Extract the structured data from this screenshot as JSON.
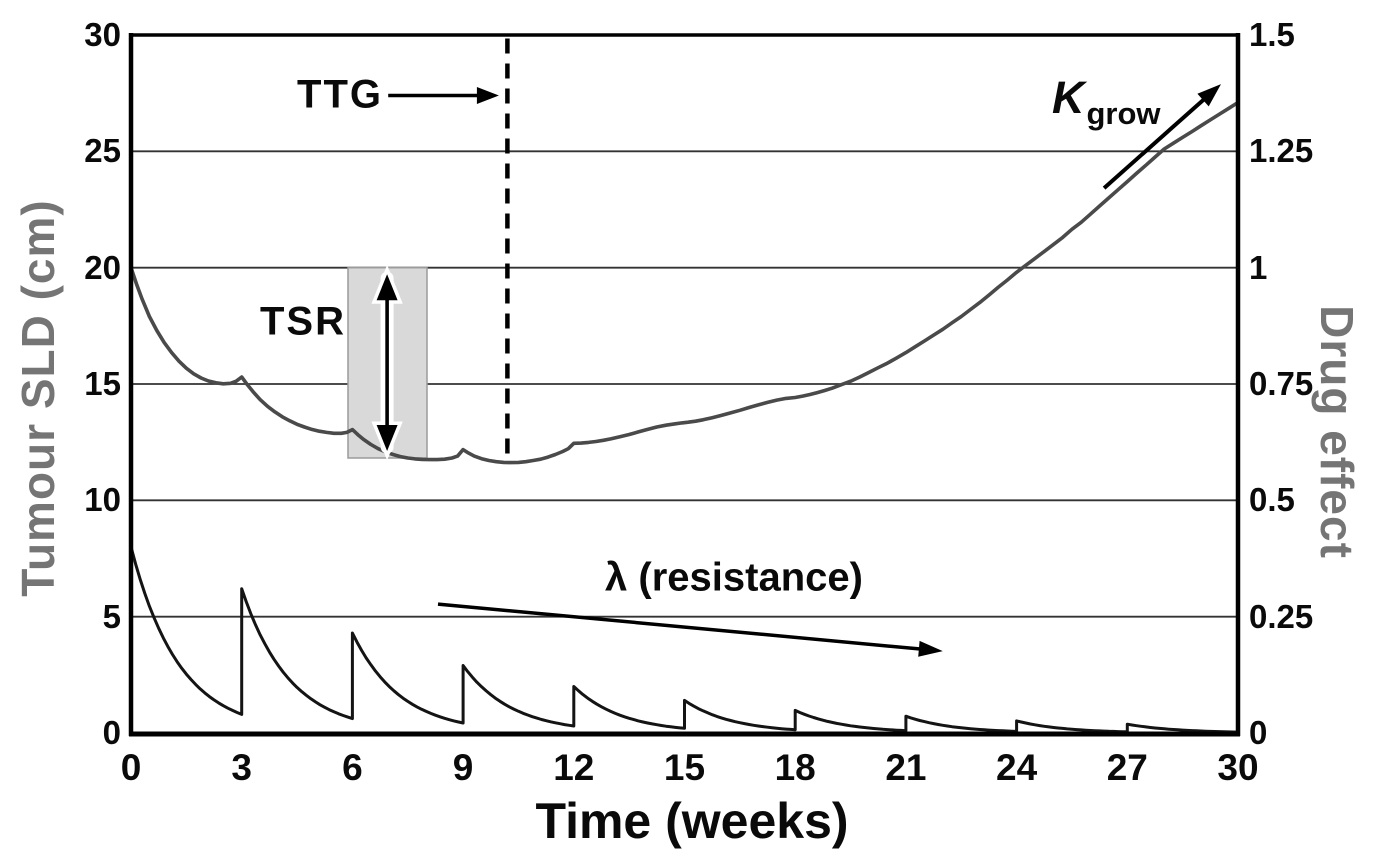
{
  "figure": {
    "background": "#ffffff"
  },
  "chart_data": {
    "type": "line",
    "title": "",
    "description": "Tumour size (SLD) and drug effect over time under repeated 3-weekly dosing, with growing resistance",
    "x_axis": {
      "title": "Time (weeks)",
      "range": [
        0,
        30
      ],
      "ticks": [
        0,
        3,
        6,
        9,
        12,
        15,
        18,
        21,
        24,
        27,
        30
      ],
      "tick_labels": [
        "0",
        "3",
        "6",
        "9",
        "12",
        "15",
        "18",
        "21",
        "24",
        "27",
        "30"
      ]
    },
    "y_axis_left": {
      "title": "Tumour SLD (cm)",
      "range": [
        0,
        30
      ],
      "ticks": [
        0,
        5,
        10,
        15,
        20,
        25,
        30
      ],
      "tick_labels": [
        "0",
        "5",
        "10",
        "15",
        "20",
        "25",
        "30"
      ],
      "title_color": "#757575"
    },
    "y_axis_right": {
      "title": "Drug effect",
      "range": [
        0,
        1.5
      ],
      "ticks": [
        0,
        0.25,
        0.5,
        0.75,
        1,
        1.25,
        1.5
      ],
      "tick_labels": [
        "0",
        "0.25",
        "0.5",
        "0.75",
        "1",
        "1.25",
        "1.5"
      ],
      "title_color": "#757575"
    },
    "grid": {
      "horizontal_at_left_values": [
        5,
        10,
        15,
        20,
        25
      ],
      "vertical": false,
      "color": "#333333"
    },
    "legend": null,
    "series": [
      {
        "name": "tumour-sld",
        "axis": "left",
        "color": "#4a4a4a",
        "width": 3.6,
        "points": [
          [
            0,
            20
          ],
          [
            0.15,
            19.3
          ],
          [
            0.3,
            18.65
          ],
          [
            0.5,
            17.9
          ],
          [
            0.7,
            17.3
          ],
          [
            0.9,
            16.78
          ],
          [
            1.1,
            16.35
          ],
          [
            1.3,
            15.98
          ],
          [
            1.5,
            15.68
          ],
          [
            1.7,
            15.44
          ],
          [
            1.9,
            15.26
          ],
          [
            2.1,
            15.13
          ],
          [
            2.3,
            15.05
          ],
          [
            2.5,
            15.01
          ],
          [
            2.7,
            15.03
          ],
          [
            2.85,
            15.12
          ],
          [
            3,
            15.3
          ],
          [
            3.15,
            14.98
          ],
          [
            3.3,
            14.68
          ],
          [
            3.5,
            14.33
          ],
          [
            3.7,
            14.04
          ],
          [
            3.9,
            13.8
          ],
          [
            4.1,
            13.59
          ],
          [
            4.3,
            13.42
          ],
          [
            4.5,
            13.27
          ],
          [
            4.7,
            13.15
          ],
          [
            4.9,
            13.05
          ],
          [
            5.1,
            12.97
          ],
          [
            5.3,
            12.92
          ],
          [
            5.5,
            12.88
          ],
          [
            5.7,
            12.88
          ],
          [
            5.85,
            12.92
          ],
          [
            6,
            13.04
          ],
          [
            6.15,
            12.82
          ],
          [
            6.3,
            12.62
          ],
          [
            6.5,
            12.4
          ],
          [
            6.7,
            12.22
          ],
          [
            6.9,
            12.08
          ],
          [
            7.1,
            11.97
          ],
          [
            7.3,
            11.88
          ],
          [
            7.5,
            11.82
          ],
          [
            7.7,
            11.78
          ],
          [
            7.9,
            11.76
          ],
          [
            8.1,
            11.75
          ],
          [
            8.3,
            11.75
          ],
          [
            8.5,
            11.77
          ],
          [
            8.7,
            11.82
          ],
          [
            8.85,
            11.9
          ],
          [
            9,
            12.18
          ],
          [
            9.15,
            12.03
          ],
          [
            9.3,
            11.9
          ],
          [
            9.5,
            11.79
          ],
          [
            9.7,
            11.71
          ],
          [
            9.9,
            11.66
          ],
          [
            10.1,
            11.63
          ],
          [
            10.3,
            11.62
          ],
          [
            10.5,
            11.63
          ],
          [
            10.7,
            11.66
          ],
          [
            10.9,
            11.71
          ],
          [
            11.1,
            11.77
          ],
          [
            11.3,
            11.86
          ],
          [
            11.5,
            11.97
          ],
          [
            11.7,
            12.1
          ],
          [
            11.85,
            12.22
          ],
          [
            12,
            12.45
          ],
          [
            12.2,
            12.46
          ],
          [
            12.4,
            12.49
          ],
          [
            12.6,
            12.53
          ],
          [
            12.8,
            12.58
          ],
          [
            13,
            12.64
          ],
          [
            13.25,
            12.73
          ],
          [
            13.5,
            12.83
          ],
          [
            13.75,
            12.94
          ],
          [
            14,
            13.05
          ],
          [
            14.25,
            13.15
          ],
          [
            14.5,
            13.23
          ],
          [
            14.75,
            13.29
          ],
          [
            14.93,
            13.33
          ],
          [
            15.1,
            13.36
          ],
          [
            15.3,
            13.4
          ],
          [
            15.5,
            13.46
          ],
          [
            15.75,
            13.55
          ],
          [
            16,
            13.65
          ],
          [
            16.25,
            13.76
          ],
          [
            16.5,
            13.87
          ],
          [
            16.75,
            13.99
          ],
          [
            17,
            14.1
          ],
          [
            17.25,
            14.21
          ],
          [
            17.5,
            14.31
          ],
          [
            17.75,
            14.38
          ],
          [
            18,
            14.42
          ],
          [
            18.2,
            14.48
          ],
          [
            18.4,
            14.55
          ],
          [
            18.6,
            14.63
          ],
          [
            18.8,
            14.72
          ],
          [
            19,
            14.82
          ],
          [
            19.25,
            14.97
          ],
          [
            19.5,
            15.12
          ],
          [
            19.75,
            15.3
          ],
          [
            20,
            15.5
          ],
          [
            20.25,
            15.7
          ],
          [
            20.5,
            15.9
          ],
          [
            20.75,
            16.12
          ],
          [
            21,
            16.35
          ],
          [
            21.25,
            16.6
          ],
          [
            21.5,
            16.85
          ],
          [
            21.75,
            17.1
          ],
          [
            22,
            17.35
          ],
          [
            22.25,
            17.63
          ],
          [
            22.5,
            17.9
          ],
          [
            22.75,
            18.2
          ],
          [
            23,
            18.5
          ],
          [
            23.25,
            18.82
          ],
          [
            23.5,
            19.15
          ],
          [
            23.75,
            19.47
          ],
          [
            24,
            19.8
          ],
          [
            24.25,
            20.1
          ],
          [
            24.5,
            20.4
          ],
          [
            24.75,
            20.7
          ],
          [
            25,
            21.0
          ],
          [
            25.25,
            21.3
          ],
          [
            25.5,
            21.65
          ],
          [
            25.75,
            21.95
          ],
          [
            26,
            22.3
          ],
          [
            26.25,
            22.65
          ],
          [
            26.5,
            23.0
          ],
          [
            26.75,
            23.35
          ],
          [
            27,
            23.7
          ],
          [
            27.25,
            24.05
          ],
          [
            27.5,
            24.4
          ],
          [
            27.75,
            24.75
          ],
          [
            28,
            25.1
          ],
          [
            28.25,
            25.35
          ],
          [
            28.5,
            25.6
          ],
          [
            28.75,
            25.85
          ],
          [
            29,
            26.1
          ],
          [
            29.25,
            26.35
          ],
          [
            29.5,
            26.6
          ],
          [
            29.75,
            26.85
          ],
          [
            30,
            27.1
          ]
        ]
      },
      {
        "name": "drug-effect",
        "axis": "right",
        "color": "#141414",
        "width": 3,
        "dosing_interval_weeks": 3,
        "dose_times": [
          0,
          3,
          6,
          9,
          12,
          15,
          18,
          21,
          24,
          27
        ],
        "peak_values": [
          0.4,
          0.31,
          0.215,
          0.145,
          0.1,
          0.07,
          0.0485,
          0.036,
          0.026,
          0.019
        ],
        "trough_values": [
          0.04,
          0.031,
          0.0215,
          0.015,
          0.01,
          0.007,
          0.005,
          0.0035,
          0.0025,
          0.002
        ]
      }
    ],
    "annotations": {
      "ttg": {
        "text": "TTG",
        "type": "dashed-vline-with-arrow",
        "x_weeks": 10.2,
        "line_top_sld": 29.85,
        "line_bottom_sld": 11.9,
        "arrow_from": [
          6.97,
          27.4
        ],
        "arrow_to": [
          9.97,
          27.4
        ]
      },
      "tsr": {
        "text": "TSR",
        "type": "shaded-box-with-double-arrow",
        "x_weeks": [
          5.88,
          8.02
        ],
        "y_sld": [
          11.82,
          20.0
        ],
        "box_fill": "#d9d9d9",
        "box_border": "#9b9b9b",
        "arrow_x_weeks": 6.94,
        "arrow_y_sld": [
          12.12,
          19.72
        ]
      },
      "lambda": {
        "text": "λ (resistance)",
        "type": "arrow-down-right",
        "arrow_from": [
          8.32,
          5.54
        ],
        "arrow_to": [
          22.0,
          3.52
        ]
      },
      "kgrow": {
        "text_main": "K",
        "text_sub": "grow",
        "type": "arrow-up-right",
        "arrow_from": [
          26.37,
          23.42
        ],
        "arrow_to": [
          29.54,
          27.89
        ]
      }
    }
  }
}
